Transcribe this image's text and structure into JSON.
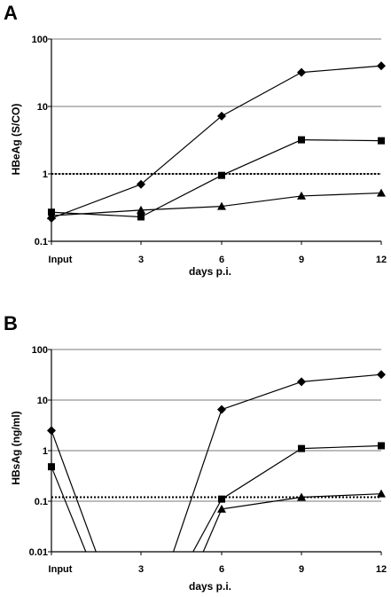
{
  "chart_data": [
    {
      "panel": "A",
      "type": "line",
      "y_scale": "log",
      "ylim": [
        0.1,
        100
      ],
      "yticks": [
        "100",
        "10",
        "1",
        "0.1"
      ],
      "yticks_values": [
        100,
        10,
        1,
        0.1
      ],
      "xlabel": "days p.i.",
      "ylabel": "HBeAg (S/CO)",
      "categories": [
        "Input",
        "3",
        "6",
        "9",
        "12"
      ],
      "grid": "horizontal",
      "cutoff": 1,
      "series": [
        {
          "marker": "diamond",
          "values": [
            0.22,
            0.7,
            7.2,
            32,
            40
          ]
        },
        {
          "marker": "square",
          "values": [
            0.27,
            0.23,
            0.95,
            3.2,
            3.1
          ]
        },
        {
          "marker": "triangle",
          "values": [
            0.24,
            0.29,
            0.33,
            0.47,
            0.52
          ]
        }
      ]
    },
    {
      "panel": "B",
      "type": "line",
      "y_scale": "log",
      "ylim": [
        0.01,
        100
      ],
      "yticks": [
        "100",
        "10",
        "1",
        "0.1",
        "0.01"
      ],
      "yticks_values": [
        100,
        10,
        1,
        0.1,
        0.01
      ],
      "xlabel": "days p.i.",
      "ylabel": "HBsAg (ng/ml)",
      "categories": [
        "Input",
        "3",
        "6",
        "9",
        "12"
      ],
      "grid": "horizontal",
      "cutoff": 0.12,
      "series": [
        {
          "marker": "diamond",
          "values": [
            2.5,
            null,
            6.5,
            23,
            32
          ]
        },
        {
          "marker": "square",
          "values": [
            0.48,
            null,
            0.11,
            1.1,
            1.25
          ]
        },
        {
          "marker": "triangle",
          "values": [
            null,
            null,
            0.07,
            0.12,
            0.14
          ]
        }
      ]
    }
  ]
}
